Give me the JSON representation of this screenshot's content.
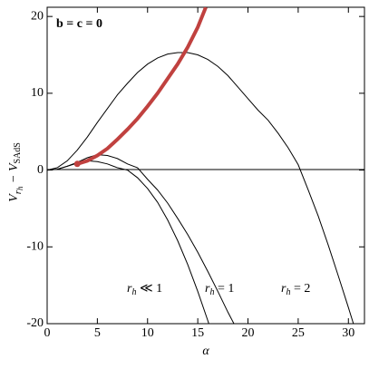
{
  "chart_data": {
    "type": "line",
    "annotation": "b = c = 0",
    "xlabel": "α",
    "ylabel": [
      "V",
      "r",
      "h",
      " − V",
      "SAdS"
    ],
    "xlim": [
      0,
      31.6
    ],
    "xticks": [
      0,
      5,
      10,
      15,
      20,
      25,
      30
    ],
    "ylim": [
      -20,
      21.2
    ],
    "yticks": [
      -20,
      -10,
      0,
      10,
      20
    ],
    "series": [
      {
        "name": "rh ≪ 1",
        "color": "#000000",
        "x": [
          0,
          1,
          2,
          3,
          4,
          5,
          6,
          7,
          8,
          9,
          10,
          11,
          12,
          13,
          14,
          15,
          16,
          16.1
        ],
        "values": [
          0,
          0.1,
          0.5,
          0.9,
          1.2,
          1.1,
          0.8,
          0.3,
          0,
          -1.0,
          -2.4,
          -4.2,
          -6.5,
          -9.2,
          -12.3,
          -15.8,
          -19.6,
          -20
        ]
      },
      {
        "name": "rh = 1",
        "color": "#000000",
        "x": [
          0,
          1,
          2,
          3,
          4,
          5,
          6,
          7,
          8,
          9,
          10,
          11,
          12,
          13,
          14,
          15,
          16,
          17,
          18,
          18.6
        ],
        "values": [
          0,
          0.1,
          0.5,
          1.0,
          1.6,
          2.0,
          1.9,
          1.5,
          0.8,
          0.3,
          -1.2,
          -2.6,
          -4.3,
          -6.3,
          -8.4,
          -10.7,
          -13.2,
          -15.8,
          -18.5,
          -20
        ]
      },
      {
        "name": "rh = 2",
        "color": "#000000",
        "x": [
          0,
          1,
          2,
          3,
          4,
          5,
          6,
          7,
          8,
          9,
          10,
          11,
          12,
          13,
          14,
          15,
          16,
          17,
          18,
          19,
          20,
          21,
          22,
          23,
          24,
          25,
          26,
          27,
          28,
          29,
          30,
          30.5
        ],
        "values": [
          0,
          0.3,
          1.2,
          2.6,
          4.3,
          6.2,
          8.0,
          9.8,
          11.3,
          12.7,
          13.8,
          14.6,
          15.1,
          15.3,
          15.3,
          15.0,
          14.4,
          13.5,
          12.3,
          10.8,
          9.3,
          7.8,
          6.5,
          4.8,
          2.9,
          0.7,
          -2.6,
          -6.0,
          -9.8,
          -13.8,
          -17.9,
          -20
        ]
      },
      {
        "color": "#c0413f",
        "x": [
          3,
          4,
          5,
          6,
          7,
          8,
          9,
          10,
          11,
          12,
          13,
          14,
          15,
          15.8
        ],
        "values": [
          0.8,
          1.2,
          1.9,
          2.8,
          4.0,
          5.3,
          6.7,
          8.3,
          10.0,
          11.9,
          13.8,
          16.0,
          18.6,
          21.2
        ]
      }
    ]
  }
}
